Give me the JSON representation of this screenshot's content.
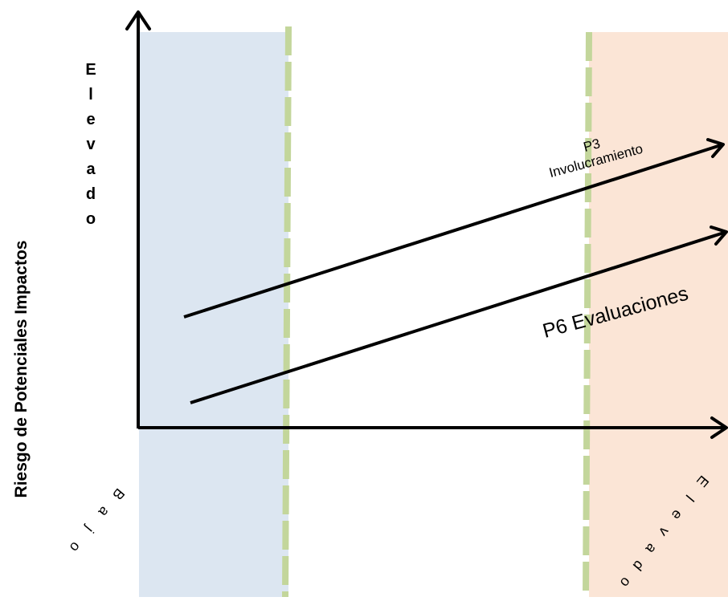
{
  "colors": {
    "low_zone": "#dce6f1",
    "high_zone": "#fbe5d6",
    "divider": "#c3d69b",
    "arrow": "#000000"
  },
  "y_axis": {
    "label": "Riesgo de Potenciales Impactos",
    "top_label": "Elevado"
  },
  "x_axis": {
    "low_label": "Bajo",
    "high_label": "Elevado"
  },
  "arrows": [
    {
      "id": "p3",
      "label_line1": "P3",
      "label_line2": "Involucramiento"
    },
    {
      "id": "p6",
      "label": "P6 Evaluaciones"
    }
  ]
}
